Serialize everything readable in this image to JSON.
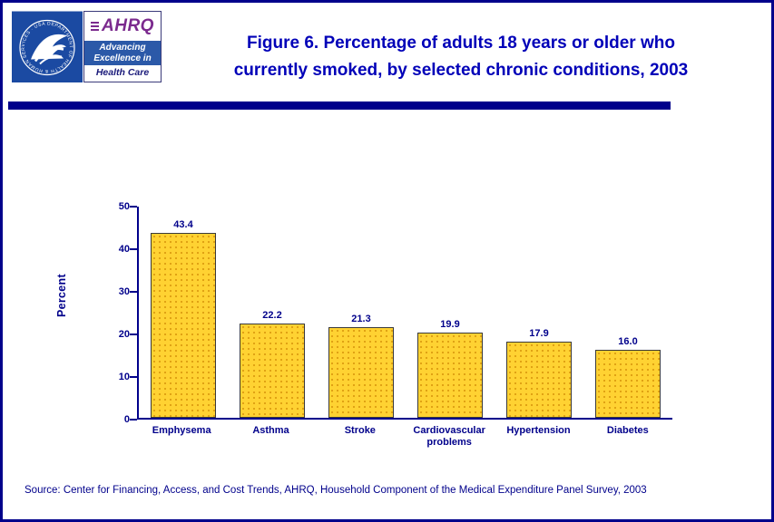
{
  "header": {
    "title_lines": [
      "Figure 6. Percentage of adults 18 years or older who",
      "currently smoked, by selected chronic conditions, 2003"
    ],
    "logos": {
      "hhs": {
        "ring_text": "DEPARTMENT OF HEALTH & HUMAN SERVICES · USA"
      },
      "ahrq": {
        "acronym": "AHRQ",
        "tagline_line1": "Advancing",
        "tagline_line2": "Excellence in",
        "tagline_line3": "Health Care"
      }
    }
  },
  "chart_data": {
    "type": "bar",
    "title": "Figure 6. Percentage of adults 18 years or older who currently smoked, by selected chronic conditions, 2003",
    "categories": [
      "Emphysema",
      "Asthma",
      "Stroke",
      "Cardiovascular problems",
      "Hypertension",
      "Diabetes"
    ],
    "values": [
      43.4,
      22.2,
      21.3,
      19.9,
      17.9,
      16.0
    ],
    "value_labels": [
      "43.4",
      "22.2",
      "21.3",
      "19.9",
      "17.9",
      "16.0"
    ],
    "xlabel": "",
    "ylabel": "Percent",
    "ylim": [
      0,
      50
    ],
    "yticks": [
      0,
      10,
      20,
      30,
      40,
      50
    ],
    "grid": false,
    "legend": "none",
    "bar_color": "#FFD232",
    "bar_dot_color": "#DE9E12"
  },
  "footer": {
    "source": "Source: Center for Financing, Access, and Cost Trends, AHRQ, Household Component of the Medical Expenditure Panel Survey, 2003"
  },
  "colors": {
    "navy": "#00008B",
    "title_blue": "#0000B8",
    "ahrq_purple": "#7B2A8E",
    "hhs_blue": "#1B4AA2",
    "tagline_blue": "#2B59A8"
  }
}
